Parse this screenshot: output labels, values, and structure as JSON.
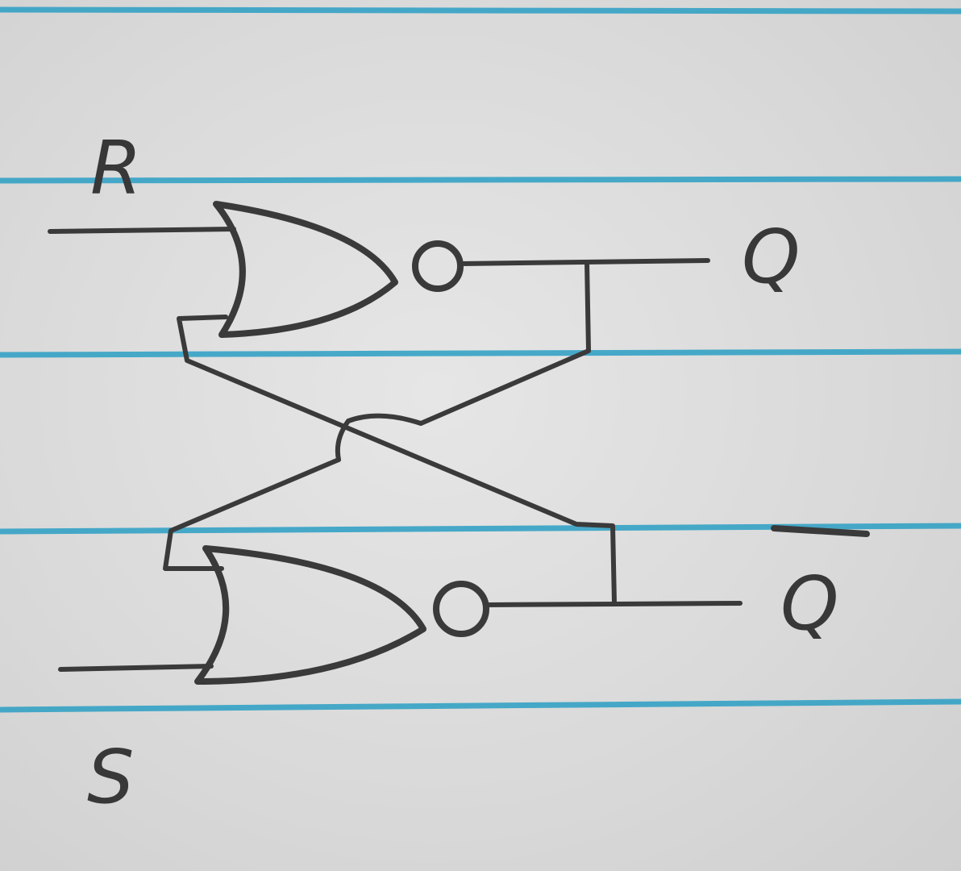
{
  "diagram": {
    "labels": {
      "reset": "R",
      "set": "S",
      "output": "Q",
      "output_complement": "Q"
    },
    "gates": [
      {
        "id": "gate-top",
        "type": "NOR"
      },
      {
        "id": "gate-bottom",
        "type": "NOR"
      }
    ],
    "colors": {
      "paper": "#dcdcdc",
      "ruled_line": "#2c9fc4",
      "ink": "#3a3a3a"
    }
  }
}
